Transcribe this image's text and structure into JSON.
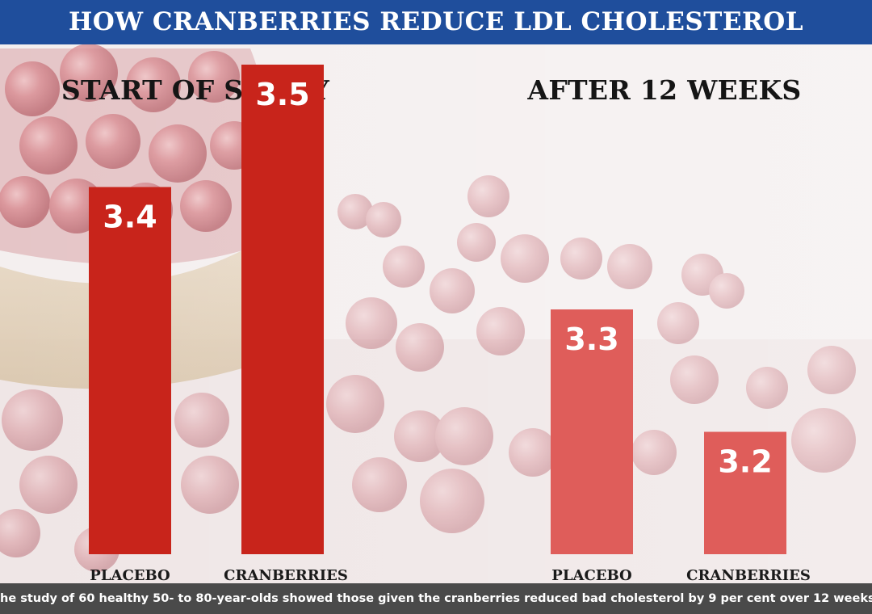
{
  "header": {
    "title": "HOW CRANBERRIES REDUCE LDL CHOLESTEROL"
  },
  "caption": {
    "text": "he study of 60 healthy 50- to 80-year-olds showed those given the cranberries reduced bad cholesterol by 9 per cent over 12 weeks"
  },
  "colors": {
    "title_bar": "#1f4e9c",
    "bar_start": "#c8241b",
    "bar_after": "#df5d5a",
    "caption_bar": "#4a4a4a",
    "bar_label": "#ffffff",
    "category_label": "#1a1a1a"
  },
  "chart_data": [
    {
      "type": "bar",
      "title": "START OF STUDY",
      "categories": [
        "PLACEBO",
        "CRANBERRIES"
      ],
      "values": [
        3.4,
        3.5
      ],
      "value_labels": [
        "3.4",
        "3.5"
      ],
      "color": "#c8241b",
      "grid": false
    },
    {
      "type": "bar",
      "title": "AFTER 12 WEEKS",
      "categories": [
        "PLACEBO",
        "CRANBERRIES"
      ],
      "values": [
        3.3,
        3.2
      ],
      "value_labels": [
        "3.3",
        "3.2"
      ],
      "color": "#df5d5a",
      "grid": false
    }
  ]
}
